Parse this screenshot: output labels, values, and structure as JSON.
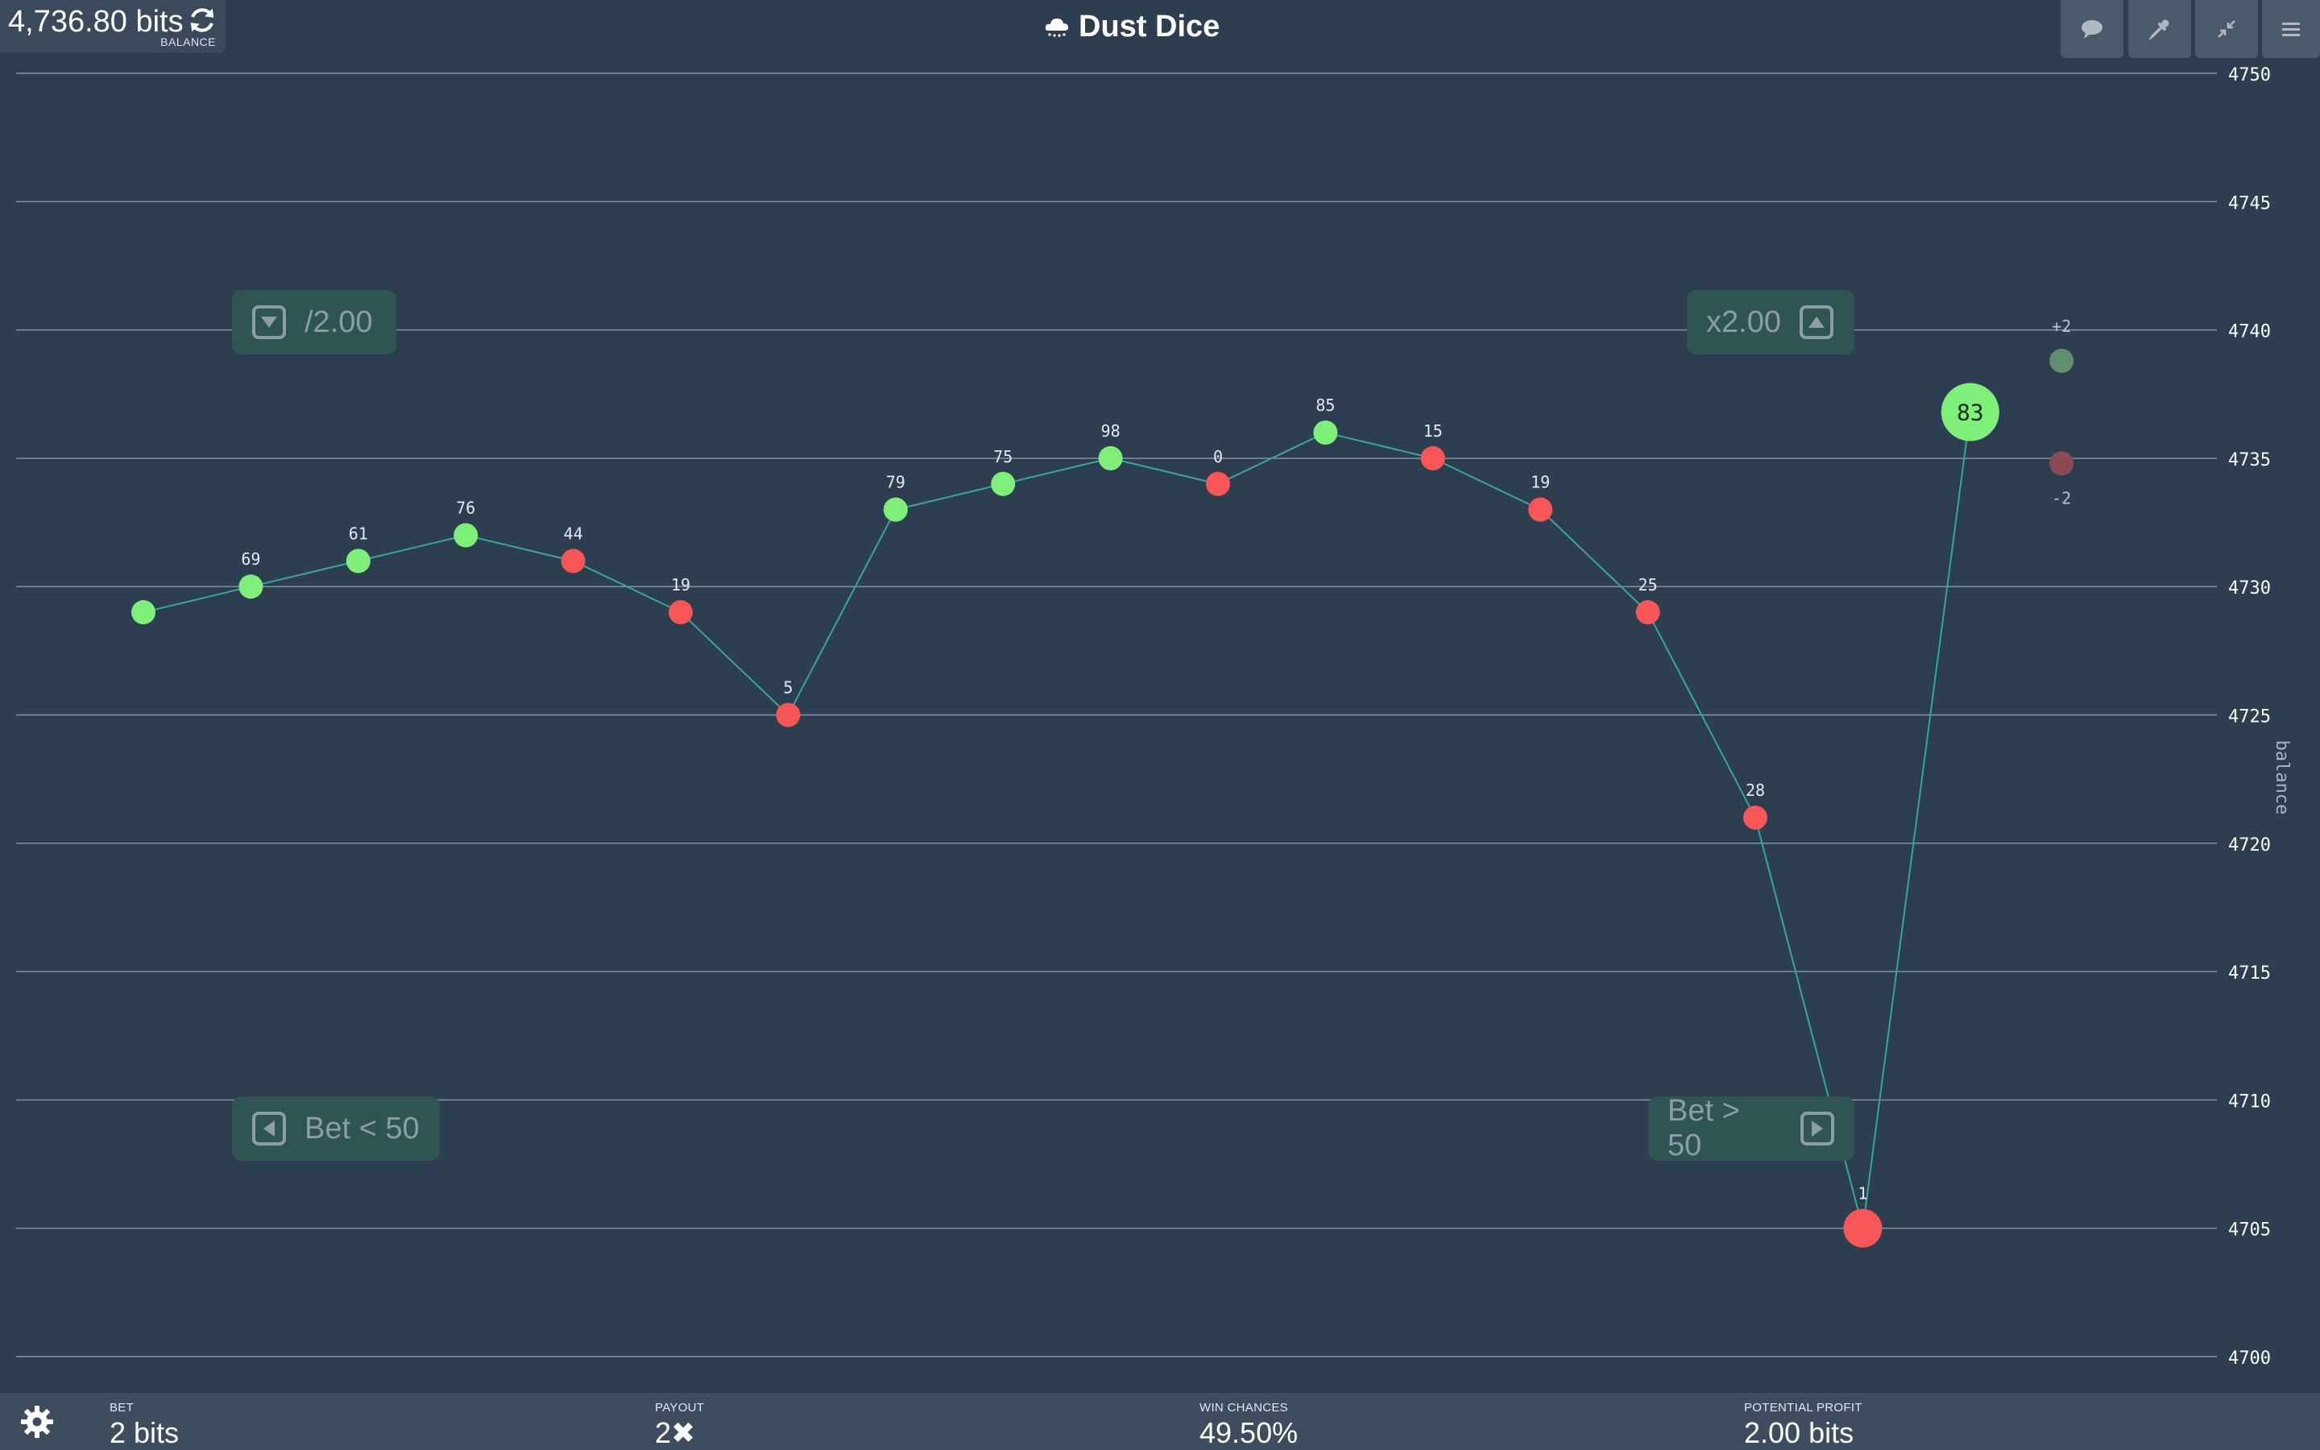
{
  "header": {
    "balance": "4,736.80 bits",
    "balance_label": "BALANCE",
    "title": "Dust Dice"
  },
  "toolbar_icons": [
    "chat-icon",
    "faucet-dropper-icon",
    "compress-icon",
    "menu-icon"
  ],
  "controls": {
    "halve_label": "/2.00",
    "double_label": "x2.00",
    "bet_low_label": "Bet < 50",
    "bet_high_label": "Bet > 50"
  },
  "chart_data": {
    "type": "line",
    "ylabel": "balance",
    "ylim": [
      4700,
      4750
    ],
    "yticks": [
      4700,
      4705,
      4710,
      4715,
      4720,
      4725,
      4730,
      4735,
      4740,
      4745,
      4750
    ],
    "grid": true,
    "axis_position": "right",
    "points": [
      {
        "balance": 4729,
        "roll": "",
        "win": true
      },
      {
        "balance": 4730,
        "roll": "69",
        "win": true
      },
      {
        "balance": 4731,
        "roll": "61",
        "win": true
      },
      {
        "balance": 4732,
        "roll": "76",
        "win": true
      },
      {
        "balance": 4731,
        "roll": "44",
        "win": false
      },
      {
        "balance": 4729,
        "roll": "19",
        "win": false
      },
      {
        "balance": 4725,
        "roll": "5",
        "win": false
      },
      {
        "balance": 4733,
        "roll": "79",
        "win": true
      },
      {
        "balance": 4734,
        "roll": "75",
        "win": true
      },
      {
        "balance": 4735,
        "roll": "98",
        "win": true
      },
      {
        "balance": 4734,
        "roll": "0",
        "win": false
      },
      {
        "balance": 4736,
        "roll": "85",
        "win": true
      },
      {
        "balance": 4735,
        "roll": "15",
        "win": false
      },
      {
        "balance": 4733,
        "roll": "19",
        "win": false
      },
      {
        "balance": 4729,
        "roll": "25",
        "win": false
      },
      {
        "balance": 4721,
        "roll": "28",
        "win": false
      },
      {
        "balance": 4705,
        "roll": "1",
        "win": false
      },
      {
        "balance": 4736.8,
        "roll": "83",
        "win": true
      }
    ],
    "preview": [
      {
        "label": "+2",
        "balance": 4738.8,
        "win": true
      },
      {
        "label": "-2",
        "balance": 4734.8,
        "win": false
      }
    ],
    "colors": {
      "win": "#7ef07a",
      "loss": "#f65656",
      "line": "#36a89a",
      "grid": "#8a98a6"
    }
  },
  "bottom": {
    "bet_label": "BET",
    "bet_value": "2 bits",
    "payout_label": "PAYOUT",
    "payout_value": "2✖",
    "chance_label": "WIN CHANCES",
    "chance_value": "49.50%",
    "profit_label": "POTENTIAL PROFIT",
    "profit_value": "2.00 bits"
  }
}
